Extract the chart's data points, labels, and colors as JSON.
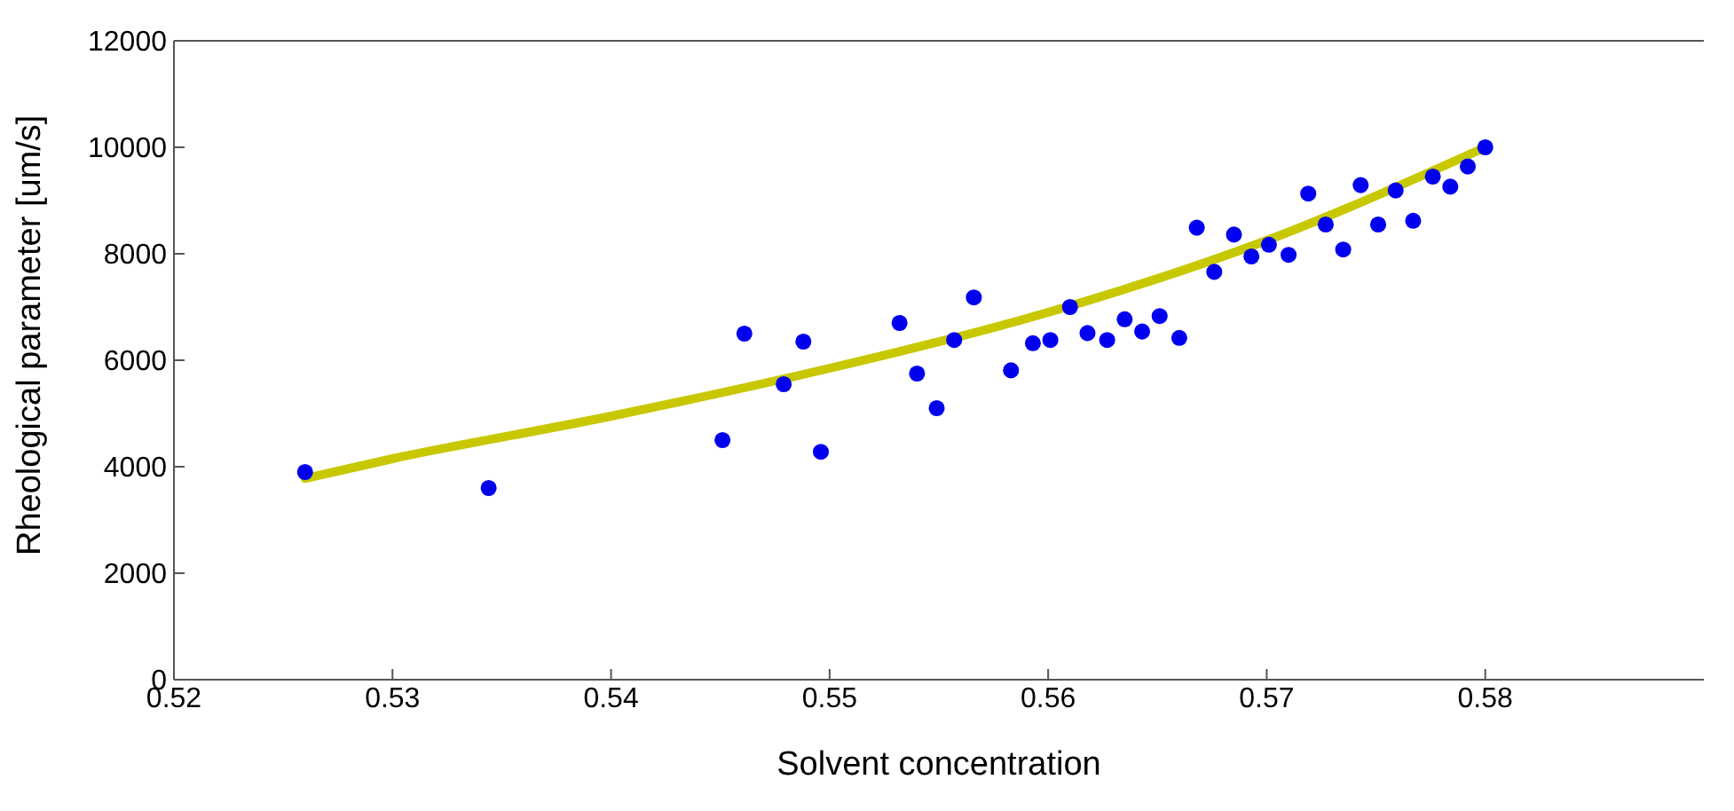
{
  "chart_data": {
    "type": "scatter",
    "xlabel": "Solvent concentration",
    "ylabel": "Rheological parameter  [um/s]",
    "xlim": [
      0.52,
      0.59
    ],
    "xticks": [
      0.52,
      0.53,
      0.54,
      0.55,
      0.56,
      0.57,
      0.58
    ],
    "ylim": [
      0,
      12000
    ],
    "yticks": [
      0,
      2000,
      4000,
      6000,
      8000,
      10000,
      12000
    ],
    "grid": false,
    "series": [
      {
        "color": "#0000ee",
        "marker": "circle",
        "x": [
          0.526,
          0.5344,
          0.5451,
          0.5461,
          0.5479,
          0.5488,
          0.5496,
          0.5532,
          0.554,
          0.5549,
          0.5557,
          0.5566,
          0.5583,
          0.5593,
          0.5601,
          0.561,
          0.5618,
          0.5627,
          0.5635,
          0.5643,
          0.5651,
          0.566,
          0.5668,
          0.5676,
          0.5685,
          0.5693,
          0.5701,
          0.571,
          0.5719,
          0.5727,
          0.5735,
          0.5743,
          0.5751,
          0.5759,
          0.5767,
          0.5776,
          0.5784,
          0.5792,
          0.58
        ],
        "values": [
          3900,
          3600,
          4500,
          6500,
          5550,
          6350,
          4280,
          6700,
          5750,
          5100,
          6380,
          7180,
          5810,
          6320,
          6380,
          7000,
          6510,
          6380,
          6770,
          6540,
          6830,
          6420,
          8490,
          7660,
          8360,
          7950,
          8170,
          7980,
          9130,
          8550,
          8080,
          9290,
          8550,
          9190,
          8620,
          9450,
          9260,
          9640,
          10000
        ]
      },
      {
        "type": "line",
        "color": "#c8c800",
        "marker": "none",
        "line_style": "solid",
        "x": [
          0.526,
          0.53,
          0.54,
          0.55,
          0.56,
          0.57,
          0.58
        ],
        "values": [
          3780,
          4150,
          4950,
          5850,
          6900,
          8250,
          10000
        ]
      }
    ]
  }
}
